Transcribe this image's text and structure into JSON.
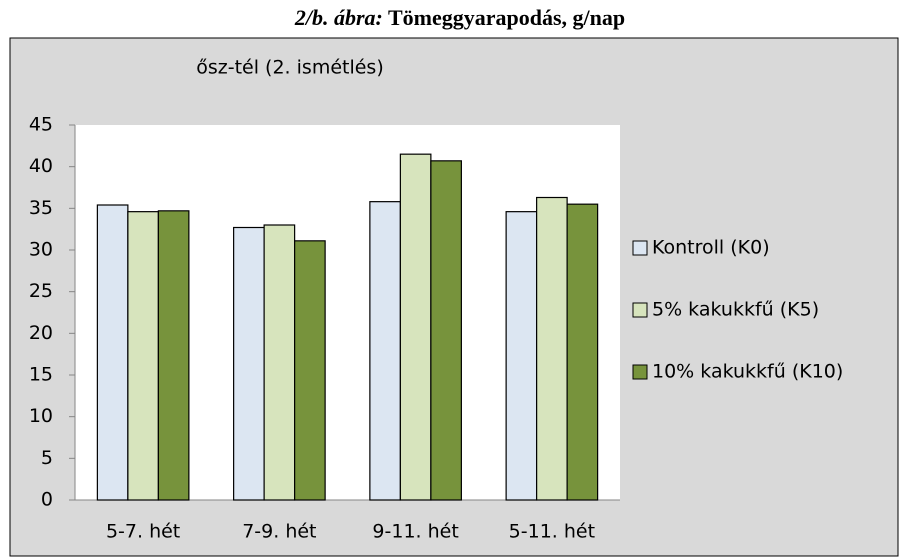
{
  "caption_label": "2/b. ábra:",
  "caption": "Tömeggyarapodás, g/nap",
  "chart_data": {
    "type": "bar",
    "title": "ősz-tél (2. ismétlés)",
    "categories": [
      "5-7. hét",
      "7-9. hét",
      "9-11. hét",
      "5-11. hét"
    ],
    "series": [
      {
        "name": "Kontroll (K0)",
        "color": "#dce6f2",
        "values": [
          35.4,
          32.7,
          35.8,
          34.6
        ]
      },
      {
        "name": "5% kakukkfű (K5)",
        "color": "#d7e4bd",
        "values": [
          34.6,
          33.0,
          41.5,
          36.3
        ]
      },
      {
        "name": "10% kakukkfű (K10)",
        "color": "#77933c",
        "values": [
          34.7,
          31.1,
          40.7,
          35.5
        ]
      }
    ],
    "ylim": [
      0,
      45
    ],
    "yticks": [
      0,
      5,
      10,
      15,
      20,
      25,
      30,
      35,
      40,
      45
    ],
    "grid": false,
    "legend": "right"
  }
}
